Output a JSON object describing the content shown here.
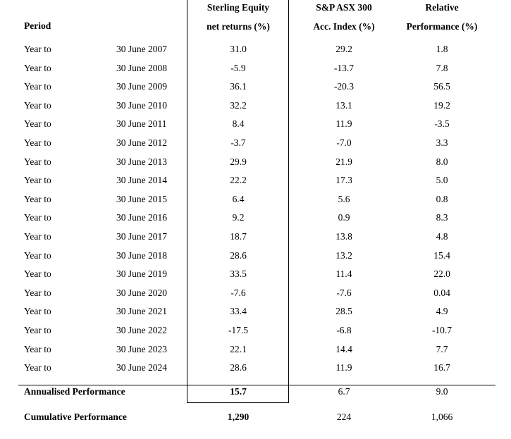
{
  "header": {
    "period_label": "Period",
    "fund_line1": "Sterling Equity",
    "fund_line2": "net returns (%)",
    "index_line1": "S&P ASX 300",
    "index_line2": "Acc. Index (%)",
    "relative_line1": "Relative",
    "relative_line2": "Performance (%)"
  },
  "rows": [
    {
      "label": "Year to",
      "date": "30 June 2007",
      "fund": "31.0",
      "index": "29.2",
      "relative": "1.8"
    },
    {
      "label": "Year to",
      "date": "30 June 2008",
      "fund": "-5.9",
      "index": "-13.7",
      "relative": "7.8"
    },
    {
      "label": "Year to",
      "date": "30 June 2009",
      "fund": "36.1",
      "index": "-20.3",
      "relative": "56.5"
    },
    {
      "label": "Year to",
      "date": "30 June 2010",
      "fund": "32.2",
      "index": "13.1",
      "relative": "19.2"
    },
    {
      "label": "Year to",
      "date": "30 June 2011",
      "fund": "8.4",
      "index": "11.9",
      "relative": "-3.5"
    },
    {
      "label": "Year to",
      "date": "30 June 2012",
      "fund": "-3.7",
      "index": "-7.0",
      "relative": "3.3"
    },
    {
      "label": "Year to",
      "date": "30 June 2013",
      "fund": "29.9",
      "index": "21.9",
      "relative": "8.0"
    },
    {
      "label": "Year to",
      "date": "30 June 2014",
      "fund": "22.2",
      "index": "17.3",
      "relative": "5.0"
    },
    {
      "label": "Year to",
      "date": "30 June 2015",
      "fund": "6.4",
      "index": "5.6",
      "relative": "0.8"
    },
    {
      "label": "Year to",
      "date": "30 June 2016",
      "fund": "9.2",
      "index": "0.9",
      "relative": "8.3"
    },
    {
      "label": "Year to",
      "date": "30 June 2017",
      "fund": "18.7",
      "index": "13.8",
      "relative": "4.8"
    },
    {
      "label": "Year to",
      "date": "30 June 2018",
      "fund": "28.6",
      "index": "13.2",
      "relative": "15.4"
    },
    {
      "label": "Year to",
      "date": "30 June 2019",
      "fund": "33.5",
      "index": "11.4",
      "relative": "22.0"
    },
    {
      "label": "Year to",
      "date": "30 June 2020",
      "fund": "-7.6",
      "index": "-7.6",
      "relative": "0.04"
    },
    {
      "label": "Year to",
      "date": "30 June 2021",
      "fund": "33.4",
      "index": "28.5",
      "relative": "4.9"
    },
    {
      "label": "Year to",
      "date": "30 June 2022",
      "fund": "-17.5",
      "index": "-6.8",
      "relative": "-10.7"
    },
    {
      "label": "Year to",
      "date": "30 June 2023",
      "fund": "22.1",
      "index": "14.4",
      "relative": "7.7"
    },
    {
      "label": "Year to",
      "date": "30 June 2024",
      "fund": "28.6",
      "index": "11.9",
      "relative": "16.7"
    }
  ],
  "annualised": {
    "label": "Annualised Performance",
    "fund": "15.7",
    "index": "6.7",
    "relative": "9.0"
  },
  "cumulative": {
    "label": "Cumulative Performance",
    "fund": "1,290",
    "index": "224",
    "relative": "1,066"
  }
}
